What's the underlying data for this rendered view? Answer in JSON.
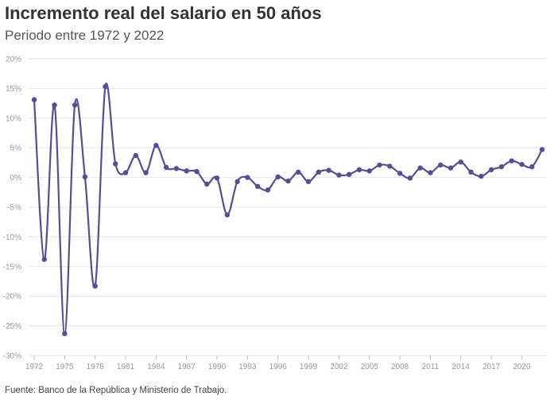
{
  "header": {
    "title": "Incremento real del salario en 50 años",
    "subtitle": "Periodo entre 1972 y 2022"
  },
  "footer": {
    "source": "Fuente: Banco de la República y Ministerio de Trabajo."
  },
  "colors": {
    "series": "#5b4a96",
    "grid": "#e6e6e6",
    "tick_text": "#999999"
  },
  "chart_data": {
    "type": "line",
    "title": "Incremento real del salario en 50 años",
    "subtitle": "Periodo entre 1972 y 2022",
    "xlabel": "",
    "ylabel": "",
    "xlim": [
      1972,
      2022
    ],
    "ylim": [
      -30,
      20
    ],
    "y_ticks": [
      20,
      15,
      10,
      5,
      0,
      -5,
      -10,
      -15,
      -20,
      -25,
      -30
    ],
    "y_tick_labels": [
      "20%",
      "15%",
      "10%",
      "5%",
      "0%",
      "-5%",
      "-10%",
      "-15%",
      "-20%",
      "-25%",
      "-30%"
    ],
    "x_ticks": [
      1972,
      1975,
      1978,
      1981,
      1984,
      1987,
      1990,
      1993,
      1996,
      1999,
      2002,
      2005,
      2008,
      2011,
      2014,
      2017,
      2020
    ],
    "x_tick_labels": [
      "1972",
      "1975",
      "1978",
      "1981",
      "1984",
      "1987",
      "1990",
      "1993",
      "1996",
      "1999",
      "2002",
      "2005",
      "2008",
      "2011",
      "2014",
      "2017",
      "2020"
    ],
    "grid": "horizontal",
    "legend": "none",
    "series": [
      {
        "x": [
          1972,
          1973,
          1974,
          1975,
          1976,
          1977,
          1978,
          1979,
          1980,
          1981,
          1982,
          1983,
          1984,
          1985,
          1986,
          1987,
          1988,
          1989,
          1990,
          1991,
          1992,
          1993,
          1994,
          1995,
          1996,
          1997,
          1998,
          1999,
          2000,
          2001,
          2002,
          2003,
          2004,
          2005,
          2006,
          2007,
          2008,
          2009,
          2010,
          2011,
          2012,
          2013,
          2014,
          2015,
          2016,
          2017,
          2018,
          2019,
          2020,
          2021,
          2022
        ],
        "values": [
          13.1,
          -13.8,
          12.2,
          -26.3,
          12.2,
          0.1,
          -18.3,
          15.3,
          2.3,
          0.8,
          3.7,
          0.8,
          5.4,
          1.7,
          1.5,
          1.1,
          1.0,
          -1.1,
          -0.1,
          -6.3,
          -0.7,
          0.0,
          -1.5,
          -2.1,
          0.1,
          -0.6,
          0.9,
          -0.7,
          0.9,
          1.2,
          0.4,
          0.5,
          1.3,
          1.1,
          2.1,
          1.9,
          0.7,
          -0.1,
          1.6,
          0.8,
          2.1,
          1.6,
          2.6,
          0.9,
          0.2,
          1.3,
          1.8,
          2.8,
          2.2,
          1.8,
          4.7
        ]
      }
    ]
  }
}
